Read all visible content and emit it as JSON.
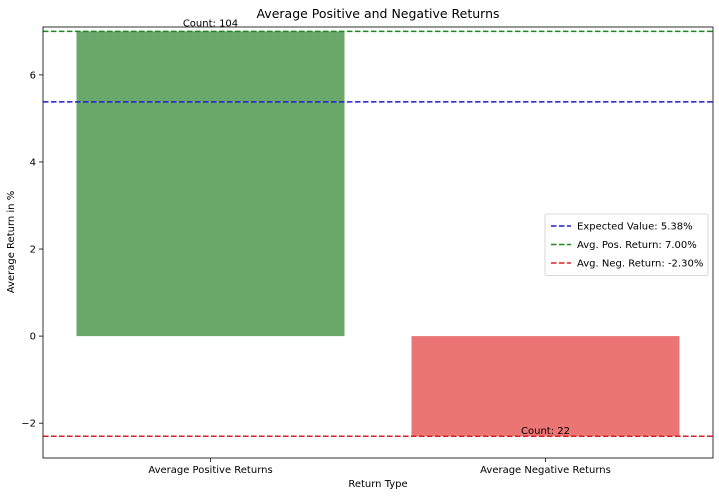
{
  "chart_data": {
    "type": "bar",
    "title": "Average Positive and Negative Returns",
    "xlabel": "Return Type",
    "ylabel": "Average Return in %",
    "categories": [
      "Average Positive Returns",
      "Average Negative Returns"
    ],
    "values": [
      7.0,
      -2.3
    ],
    "bar_colors": [
      "#6aa76a",
      "#eb7474"
    ],
    "data_labels": [
      "Count: 104",
      "Count: 22"
    ],
    "ylim": [
      -2.8,
      7.1
    ],
    "yticks": [
      -2,
      0,
      2,
      4,
      6
    ],
    "ytick_labels": [
      "−2",
      "0",
      "2",
      "4",
      "6"
    ],
    "reference_lines": [
      {
        "label": "Expected Value: 5.38%",
        "value": 5.38,
        "color": "#1f1fd0",
        "style": "dashed"
      },
      {
        "label": "Avg. Pos. Return: 7.00%",
        "value": 7.0,
        "color": "#1a8a1a",
        "style": "dashed"
      },
      {
        "label": "Avg. Neg. Return: -2.30%",
        "value": -2.3,
        "color": "#e02020",
        "style": "dashed"
      }
    ],
    "legend_position": "center-right",
    "grid": false
  }
}
